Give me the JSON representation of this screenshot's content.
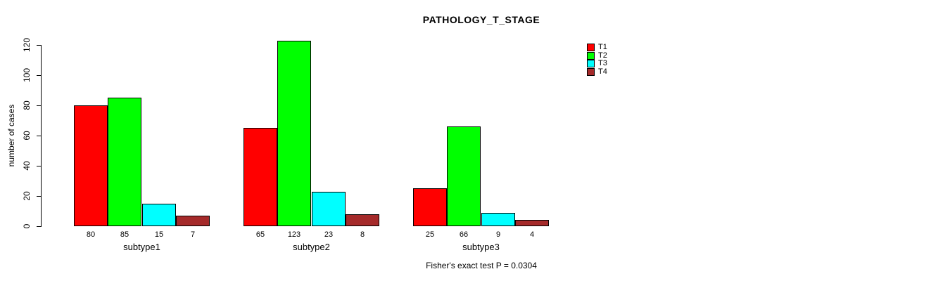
{
  "chart_data": {
    "type": "bar",
    "grouped": true,
    "title": "PATHOLOGY_T_STAGE",
    "ylabel": "number of cases",
    "xlabel": "",
    "categories": [
      "subtype1",
      "subtype2",
      "subtype3"
    ],
    "series": [
      {
        "name": "T1",
        "color": "#FF0000",
        "values": [
          80,
          65,
          25
        ]
      },
      {
        "name": "T2",
        "color": "#00FF00",
        "values": [
          85,
          123,
          66
        ]
      },
      {
        "name": "T3",
        "color": "#00FFFF",
        "values": [
          15,
          23,
          9
        ]
      },
      {
        "name": "T4",
        "color": "#A52A2A",
        "values": [
          7,
          8,
          4
        ]
      }
    ],
    "bar_value_labels_shown": true,
    "yticks": [
      0,
      20,
      40,
      60,
      80,
      100,
      120
    ],
    "ylim": [
      0,
      120
    ],
    "grid": false,
    "legend_position": "right",
    "annotation": "Fisher's exact test P = 0.0304"
  }
}
